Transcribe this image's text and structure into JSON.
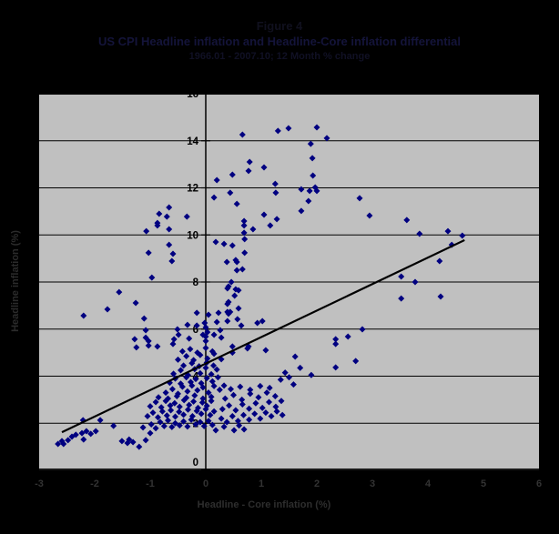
{
  "figure": {
    "title": "Figure 4",
    "subtitle": "US CPI Headline inflation and Headline-Core inflation differential",
    "period": "1966.01 - 2007.10; 12 Month % change"
  },
  "colors": {
    "page_background": "#000000",
    "plot_background": "#c0c0c0",
    "gridline": "#000000",
    "marker": "#000080",
    "trendline": "#000000",
    "y_tick_label": "#000000",
    "x_tick_label": "#333333",
    "axis_title": "#2e2e2e"
  },
  "chart_data": {
    "type": "scatter",
    "title": "Figure 4",
    "subtitle": "US CPI Headline inflation and Headline-Core inflation differential",
    "period": "1966.01 - 2007.10; 12 Month % change",
    "xlabel": "Headline - Core inflation (%)",
    "ylabel": "Headline inflation (%)",
    "xlim": [
      -3,
      6
    ],
    "ylim": [
      0,
      16
    ],
    "x_ticks": [
      -3,
      -2,
      -1,
      0,
      1,
      2,
      3,
      4,
      5,
      6
    ],
    "y_ticks": [
      0,
      2,
      4,
      6,
      8,
      10,
      12,
      14,
      16
    ],
    "grid": "horizontal",
    "legend": "none",
    "marker": {
      "shape": "diamond",
      "color": "#000080",
      "size": 7
    },
    "trendline": {
      "x1": -2.59,
      "y1": 1.62,
      "x2": 4.66,
      "y2": 9.78,
      "color": "#000000",
      "width": 2.2
    },
    "points": [
      [
        -0.84,
        10.9
      ],
      [
        -0.7,
        10.78
      ],
      [
        -0.66,
        11.17
      ],
      [
        -0.34,
        10.78
      ],
      [
        -0.87,
        10.51
      ],
      [
        -1.07,
        10.16
      ],
      [
        -0.87,
        10.4
      ],
      [
        -0.66,
        10.24
      ],
      [
        -0.66,
        9.58
      ],
      [
        -1.03,
        9.24
      ],
      [
        -0.59,
        9.2
      ],
      [
        -0.61,
        8.89
      ],
      [
        -0.97,
        8.19
      ],
      [
        -1.56,
        7.57
      ],
      [
        -1.26,
        7.11
      ],
      [
        -1.77,
        6.84
      ],
      [
        -2.2,
        6.57
      ],
      [
        -1.11,
        6.45
      ],
      [
        0.66,
        14.26
      ],
      [
        1.3,
        14.42
      ],
      [
        1.49,
        14.53
      ],
      [
        2.0,
        14.57
      ],
      [
        2.18,
        14.11
      ],
      [
        1.89,
        13.87
      ],
      [
        1.92,
        13.26
      ],
      [
        0.79,
        13.1
      ],
      [
        1.05,
        12.87
      ],
      [
        0.77,
        12.72
      ],
      [
        0.48,
        12.56
      ],
      [
        0.2,
        12.33
      ],
      [
        1.93,
        12.52
      ],
      [
        1.25,
        12.17
      ],
      [
        0.44,
        11.79
      ],
      [
        0.15,
        11.59
      ],
      [
        1.26,
        11.79
      ],
      [
        1.72,
        11.94
      ],
      [
        1.87,
        11.87
      ],
      [
        1.97,
        12.02
      ],
      [
        2.0,
        11.87
      ],
      [
        1.85,
        11.44
      ],
      [
        0.56,
        11.32
      ],
      [
        1.72,
        11.02
      ],
      [
        1.05,
        10.86
      ],
      [
        0.69,
        10.59
      ],
      [
        1.28,
        10.67
      ],
      [
        0.69,
        10.4
      ],
      [
        0.85,
        10.24
      ],
      [
        1.16,
        10.4
      ],
      [
        0.69,
        10.09
      ],
      [
        0.7,
        9.82
      ],
      [
        0.18,
        9.7
      ],
      [
        0.33,
        9.62
      ],
      [
        0.48,
        9.55
      ],
      [
        0.7,
        9.24
      ],
      [
        0.54,
        8.93
      ],
      [
        0.56,
        8.85
      ],
      [
        0.38,
        8.85
      ],
      [
        0.56,
        8.5
      ],
      [
        0.66,
        8.54
      ],
      [
        0.46,
        8.0
      ],
      [
        0.41,
        7.81
      ],
      [
        0.39,
        7.73
      ],
      [
        0.54,
        7.69
      ],
      [
        0.59,
        7.65
      ],
      [
        0.52,
        7.42
      ],
      [
        0.39,
        7.07
      ],
      [
        0.41,
        7.15
      ],
      [
        0.59,
        6.88
      ],
      [
        0.39,
        6.73
      ],
      [
        0.44,
        6.73
      ],
      [
        0.23,
        6.69
      ],
      [
        0.41,
        6.65
      ],
      [
        0.57,
        6.42
      ],
      [
        0.39,
        6.34
      ],
      [
        0.2,
        6.3
      ],
      [
        0.64,
        6.15
      ],
      [
        0.93,
        6.26
      ],
      [
        1.02,
        6.34
      ],
      [
        0.26,
        5.95
      ],
      [
        0.15,
        5.76
      ],
      [
        0.28,
        5.64
      ],
      [
        -0.16,
        6.69
      ],
      [
        0.05,
        6.61
      ],
      [
        -0.33,
        6.18
      ],
      [
        -0.16,
        6.15
      ],
      [
        -0.02,
        6.26
      ],
      [
        0.0,
        6.07
      ],
      [
        0.03,
        5.87
      ],
      [
        -1.08,
        5.95
      ],
      [
        -0.51,
        5.99
      ],
      [
        -0.49,
        5.76
      ],
      [
        -0.05,
        5.76
      ],
      [
        0.0,
        5.68
      ],
      [
        -1.28,
        5.57
      ],
      [
        -1.08,
        5.64
      ],
      [
        -1.03,
        5.49
      ],
      [
        -0.57,
        5.57
      ],
      [
        -0.3,
        5.6
      ],
      [
        0.0,
        5.49
      ],
      [
        -1.03,
        5.3
      ],
      [
        -0.87,
        5.26
      ],
      [
        -1.25,
        5.22
      ],
      [
        -0.59,
        5.37
      ],
      [
        0.77,
        5.26
      ],
      [
        0.48,
        5.26
      ],
      [
        1.08,
        5.1
      ],
      [
        0.75,
        5.18
      ],
      [
        0.48,
        5.0
      ],
      [
        2.82,
        5.99
      ],
      [
        2.56,
        5.68
      ],
      [
        2.34,
        5.57
      ],
      [
        2.34,
        5.37
      ],
      [
        2.77,
        11.56
      ],
      [
        2.95,
        10.82
      ],
      [
        3.62,
        10.63
      ],
      [
        3.85,
        10.05
      ],
      [
        4.36,
        10.16
      ],
      [
        4.62,
        9.97
      ],
      [
        4.43,
        9.58
      ],
      [
        4.21,
        8.89
      ],
      [
        3.52,
        8.23
      ],
      [
        3.77,
        8.0
      ],
      [
        3.52,
        7.3
      ],
      [
        4.23,
        7.38
      ],
      [
        -2.66,
        1.12
      ],
      [
        -2.59,
        1.24
      ],
      [
        -2.48,
        1.28
      ],
      [
        -2.41,
        1.43
      ],
      [
        -2.34,
        1.51
      ],
      [
        -2.23,
        1.58
      ],
      [
        -2.15,
        1.66
      ],
      [
        -2.07,
        1.55
      ],
      [
        -1.98,
        1.66
      ],
      [
        -2.2,
        1.31
      ],
      [
        -2.56,
        1.12
      ],
      [
        -2.21,
        2.13
      ],
      [
        -1.9,
        2.13
      ],
      [
        -1.66,
        1.89
      ],
      [
        -1.51,
        1.24
      ],
      [
        -1.41,
        1.16
      ],
      [
        -1.38,
        1.31
      ],
      [
        -1.31,
        1.2
      ],
      [
        -1.2,
        1.0
      ],
      [
        -1.08,
        1.28
      ],
      [
        -1.0,
        1.58
      ],
      [
        0.18,
        1.7
      ],
      [
        0.51,
        1.7
      ],
      [
        0.69,
        1.74
      ],
      [
        0.33,
        1.85
      ],
      [
        0.6,
        1.9
      ],
      [
        1.61,
        4.83
      ],
      [
        1.7,
        4.35
      ],
      [
        1.43,
        4.15
      ],
      [
        1.9,
        4.05
      ],
      [
        2.34,
        4.37
      ],
      [
        2.7,
        4.64
      ],
      [
        1.58,
        3.65
      ],
      [
        1.35,
        3.85
      ],
      [
        1.5,
        3.95
      ],
      [
        -1.13,
        1.82
      ],
      [
        -0.98,
        1.95
      ],
      [
        -0.9,
        1.79
      ],
      [
        -0.82,
        2.05
      ],
      [
        -0.75,
        1.88
      ],
      [
        -0.68,
        2.12
      ],
      [
        -0.61,
        1.84
      ],
      [
        -0.55,
        2.0
      ],
      [
        -0.47,
        1.91
      ],
      [
        -0.4,
        2.08
      ],
      [
        -0.33,
        1.86
      ],
      [
        -0.26,
        2.15
      ],
      [
        -0.18,
        1.95
      ],
      [
        -0.1,
        2.05
      ],
      [
        -0.03,
        1.88
      ],
      [
        0.05,
        2.1
      ],
      [
        0.12,
        1.93
      ],
      [
        -1.05,
        2.3
      ],
      [
        -0.95,
        2.45
      ],
      [
        -0.86,
        2.25
      ],
      [
        -0.78,
        2.5
      ],
      [
        -0.7,
        2.33
      ],
      [
        -0.63,
        2.55
      ],
      [
        -0.55,
        2.28
      ],
      [
        -0.48,
        2.48
      ],
      [
        -0.4,
        2.36
      ],
      [
        -0.32,
        2.58
      ],
      [
        -0.24,
        2.3
      ],
      [
        -0.16,
        2.52
      ],
      [
        -0.08,
        2.4
      ],
      [
        0.0,
        2.6
      ],
      [
        0.08,
        2.35
      ],
      [
        0.15,
        2.5
      ],
      [
        -1.0,
        2.72
      ],
      [
        -0.9,
        2.9
      ],
      [
        -0.8,
        2.68
      ],
      [
        -0.72,
        2.95
      ],
      [
        -0.64,
        2.75
      ],
      [
        -0.56,
        2.85
      ],
      [
        -0.47,
        2.7
      ],
      [
        -0.39,
        2.98
      ],
      [
        -0.3,
        2.78
      ],
      [
        -0.22,
        2.92
      ],
      [
        -0.14,
        2.65
      ],
      [
        -0.06,
        2.88
      ],
      [
        0.02,
        2.74
      ],
      [
        0.1,
        2.95
      ],
      [
        -0.85,
        3.1
      ],
      [
        -0.68,
        3.05
      ],
      [
        -0.52,
        3.15
      ],
      [
        -0.35,
        3.08
      ],
      [
        -0.2,
        3.18
      ],
      [
        -0.05,
        3.05
      ],
      [
        0.1,
        3.12
      ],
      [
        -0.72,
        3.3
      ],
      [
        -0.6,
        3.45
      ],
      [
        -0.5,
        3.25
      ],
      [
        -0.42,
        3.55
      ],
      [
        -0.33,
        3.35
      ],
      [
        -0.25,
        3.6
      ],
      [
        -0.15,
        3.4
      ],
      [
        -0.05,
        3.52
      ],
      [
        0.05,
        3.3
      ],
      [
        0.15,
        3.58
      ],
      [
        0.25,
        3.42
      ],
      [
        0.33,
        3.6
      ],
      [
        -0.65,
        3.72
      ],
      [
        -0.55,
        3.9
      ],
      [
        -0.45,
        3.68
      ],
      [
        -0.35,
        3.95
      ],
      [
        -0.27,
        3.75
      ],
      [
        -0.18,
        3.88
      ],
      [
        -0.08,
        3.7
      ],
      [
        0.02,
        3.92
      ],
      [
        0.12,
        3.78
      ],
      [
        0.22,
        3.95
      ],
      [
        -0.58,
        4.1
      ],
      [
        -0.45,
        4.25
      ],
      [
        -0.32,
        4.05
      ],
      [
        -0.2,
        4.3
      ],
      [
        -0.1,
        4.12
      ],
      [
        0.0,
        4.35
      ],
      [
        0.1,
        4.08
      ],
      [
        0.2,
        4.28
      ],
      [
        -0.4,
        4.45
      ],
      [
        -0.25,
        4.55
      ],
      [
        -0.12,
        4.42
      ],
      [
        0.02,
        4.58
      ],
      [
        0.14,
        4.45
      ],
      [
        0.28,
        2.2
      ],
      [
        0.38,
        2.05
      ],
      [
        0.48,
        2.3
      ],
      [
        0.58,
        2.1
      ],
      [
        0.68,
        2.35
      ],
      [
        0.78,
        2.15
      ],
      [
        0.88,
        2.4
      ],
      [
        0.98,
        2.2
      ],
      [
        1.08,
        2.45
      ],
      [
        1.18,
        2.3
      ],
      [
        1.28,
        2.5
      ],
      [
        1.38,
        2.35
      ],
      [
        0.3,
        2.6
      ],
      [
        0.42,
        2.75
      ],
      [
        0.54,
        2.55
      ],
      [
        0.66,
        2.8
      ],
      [
        0.78,
        2.62
      ],
      [
        0.9,
        2.85
      ],
      [
        1.02,
        2.65
      ],
      [
        1.14,
        2.9
      ],
      [
        1.26,
        2.7
      ],
      [
        1.36,
        2.95
      ],
      [
        0.35,
        3.05
      ],
      [
        0.5,
        3.2
      ],
      [
        0.65,
        3.0
      ],
      [
        0.8,
        3.25
      ],
      [
        0.95,
        3.1
      ],
      [
        1.1,
        3.3
      ],
      [
        1.25,
        3.15
      ],
      [
        0.45,
        3.45
      ],
      [
        0.62,
        3.55
      ],
      [
        0.8,
        3.42
      ],
      [
        0.98,
        3.58
      ],
      [
        1.15,
        3.5
      ],
      [
        -0.5,
        4.7
      ],
      [
        -0.35,
        4.85
      ],
      [
        -0.22,
        4.68
      ],
      [
        -0.1,
        4.9
      ],
      [
        0.03,
        4.75
      ],
      [
        0.15,
        4.95
      ],
      [
        0.28,
        4.72
      ],
      [
        -0.42,
        5.05
      ],
      [
        -0.28,
        5.15
      ],
      [
        -0.15,
        5.0
      ],
      [
        0.0,
        5.2
      ],
      [
        0.12,
        5.05
      ]
    ]
  }
}
